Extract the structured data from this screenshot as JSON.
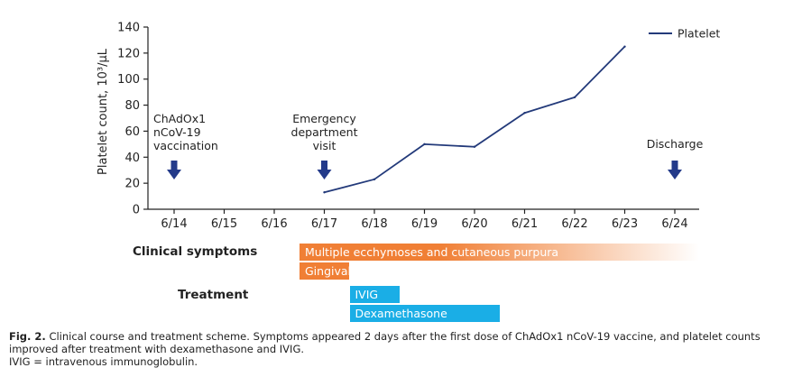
{
  "chart_data": {
    "type": "line",
    "ylabel": "Platelet count, 10³/μL",
    "ylim": [
      0,
      140
    ],
    "yticks": [
      0,
      20,
      40,
      60,
      80,
      100,
      120,
      140
    ],
    "categories": [
      "6/14",
      "6/15",
      "6/16",
      "6/17",
      "6/18",
      "6/19",
      "6/20",
      "6/21",
      "6/22",
      "6/23",
      "6/24"
    ],
    "series": [
      {
        "name": "Platelet",
        "color": "#233a7a",
        "x": [
          "6/17",
          "6/18",
          "6/19",
          "6/20",
          "6/21",
          "6/22",
          "6/23"
        ],
        "values": [
          13,
          23,
          50,
          48,
          74,
          86,
          125
        ]
      }
    ],
    "legend_position": "top-right",
    "grid": false,
    "events": [
      {
        "day": "6/14",
        "lines": [
          "ChAdOx1",
          "nCoV-19",
          "vaccination"
        ],
        "align": "start"
      },
      {
        "day": "6/17",
        "lines": [
          "Emergency",
          "department",
          "visit"
        ],
        "align": "middle"
      },
      {
        "day": "6/24",
        "lines": [
          "Discharge"
        ],
        "align": "middle"
      }
    ],
    "arrow_color": "#233a8a"
  },
  "timeline": {
    "rows": [
      {
        "label": "Clinical symptoms",
        "bars": [
          {
            "label": "Multiple ecchymoses and cutaneous purpura",
            "start": "6/16",
            "end": "6/24",
            "color": "#f07f35",
            "fade": true
          },
          {
            "label": "Gingival bleeding",
            "start": "6/16",
            "end": "6/18",
            "color": "#f07f35",
            "fade": false
          }
        ]
      },
      {
        "label": "Treatment",
        "bars": [
          {
            "label": "IVIG",
            "start": "6/17",
            "end": "6/19",
            "color": "#1aaee6",
            "fade": false
          },
          {
            "label": "Dexamethasone",
            "start": "6/17",
            "end": "6/21",
            "color": "#1aaee6",
            "fade": false
          }
        ]
      }
    ]
  },
  "caption": {
    "fig_label": "Fig. 2.",
    "text": "Clinical course and treatment scheme. Symptoms appeared 2 days after the first dose of ChAdOx1 nCoV-19 vaccine, and platelet counts improved after treatment with dexamethasone and IVIG.",
    "abbreviation": "IVIG = intravenous immunoglobulin."
  }
}
